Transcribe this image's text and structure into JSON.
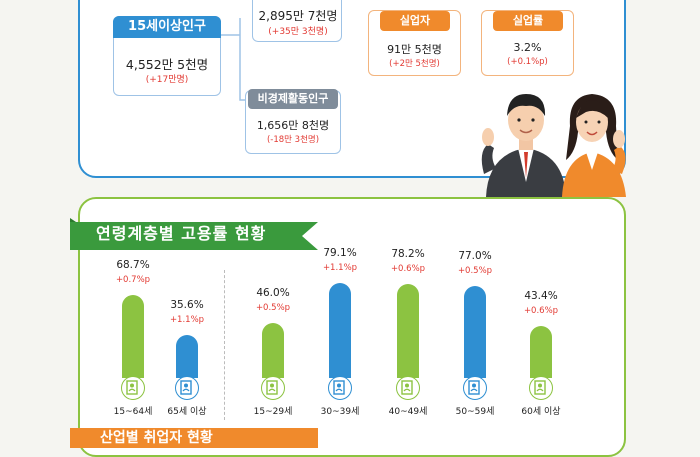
{
  "top": {
    "employed": {
      "value": "2,895만 7천명",
      "change": "(+35만 3천명)"
    },
    "pop15": {
      "label": "15세이상인구",
      "value": "4,552만 5천명",
      "change": "(+17만명)"
    },
    "unemployed": {
      "label": "실업자",
      "value": "91만 5천명",
      "change": "(+2만 5천명)"
    },
    "unemp_rate": {
      "label": "실업률",
      "value": "3.2%",
      "change": "(+0.1%p)"
    },
    "inactive": {
      "label": "비경제활동인구",
      "value": "1,656만 8천명",
      "change": "(-18만 3천명)"
    }
  },
  "colors": {
    "blue": "#2f8fd2",
    "green": "#8cc341",
    "orange": "#f08a2c",
    "red": "#e23a33",
    "dark_green": "#3a9a3d"
  },
  "icons": [
    "employee-doc-icon"
  ],
  "bottom": {
    "title": "연령계층별 고용률 현황",
    "footer_title": "산업별 취업자 현황"
  },
  "chart_data": {
    "type": "bar",
    "title": "연령계층별 고용률 현황",
    "categories": [
      "15~64세",
      "65세 이상",
      "15~29세",
      "30~39세",
      "40~49세",
      "50~59세",
      "60세 이상"
    ],
    "values": [
      68.7,
      35.6,
      46.0,
      79.1,
      78.2,
      77.0,
      43.4
    ],
    "value_labels": [
      "68.7%",
      "35.6%",
      "46.0%",
      "79.1%",
      "78.2%",
      "77.0%",
      "43.4%"
    ],
    "changes": [
      "+0.7%p",
      "+1.1%p",
      "+0.5%p",
      "+1.1%p",
      "+0.6%p",
      "+0.5%p",
      "+0.6%p"
    ],
    "bar_colors": [
      "#8cc341",
      "#2f8fd2",
      "#8cc341",
      "#2f8fd2",
      "#8cc341",
      "#2f8fd2",
      "#8cc341"
    ],
    "ylim": [
      0,
      100
    ],
    "grid": false
  }
}
